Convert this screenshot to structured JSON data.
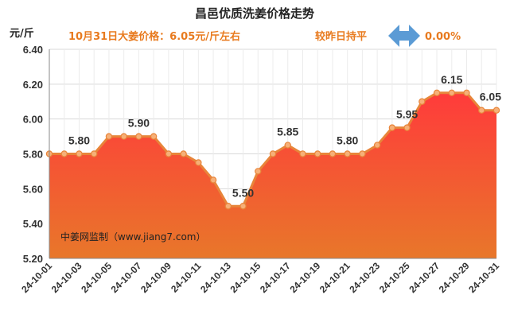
{
  "chart_data": {
    "type": "area",
    "title": "昌邑优质洗姜价格走势",
    "unit_label": "元/斤",
    "price_note": "10月31日大姜价格：6.05元/斤左右",
    "change_text": "较昨日持平",
    "change_value": "0.00%",
    "source": "中姜网监制（www.jiang7.com）",
    "ylim": [
      5.2,
      6.4
    ],
    "yticks": [
      "5.20",
      "5.40",
      "5.60",
      "5.80",
      "6.00",
      "6.20",
      "6.40"
    ],
    "x": [
      "24-10-01",
      "24-10-02",
      "24-10-03",
      "24-10-04",
      "24-10-05",
      "24-10-06",
      "24-10-07",
      "24-10-08",
      "24-10-09",
      "24-10-10",
      "24-10-11",
      "24-10-12",
      "24-10-13",
      "24-10-14",
      "24-10-15",
      "24-10-16",
      "24-10-17",
      "24-10-18",
      "24-10-19",
      "24-10-20",
      "24-10-21",
      "24-10-22",
      "24-10-23",
      "24-10-24",
      "24-10-25",
      "24-10-26",
      "24-10-27",
      "24-10-28",
      "24-10-29",
      "24-10-30",
      "24-10-31"
    ],
    "xtick_labels": [
      "24-10-01",
      "24-10-03",
      "24-10-05",
      "24-10-07",
      "24-10-09",
      "24-10-11",
      "24-10-13",
      "24-10-15",
      "24-10-17",
      "24-10-19",
      "24-10-21",
      "24-10-23",
      "24-10-25",
      "24-10-27",
      "24-10-29",
      "24-10-31"
    ],
    "values": [
      5.8,
      5.8,
      5.8,
      5.8,
      5.9,
      5.9,
      5.9,
      5.9,
      5.8,
      5.8,
      5.75,
      5.65,
      5.5,
      5.5,
      5.7,
      5.8,
      5.85,
      5.8,
      5.8,
      5.8,
      5.8,
      5.8,
      5.85,
      5.95,
      5.95,
      6.1,
      6.15,
      6.15,
      6.15,
      6.05,
      6.05
    ],
    "data_labels": [
      {
        "index": 2,
        "text": "5.80"
      },
      {
        "index": 6,
        "text": "5.90"
      },
      {
        "index": 13,
        "text": "5.50"
      },
      {
        "index": 16,
        "text": "5.85"
      },
      {
        "index": 20,
        "text": "5.80"
      },
      {
        "index": 24,
        "text": "5.95"
      },
      {
        "index": 27,
        "text": "6.15"
      },
      {
        "index": 30,
        "text": "6.05"
      }
    ],
    "colors": {
      "fill_top": "#ff3b3b",
      "fill_bottom": "#e8772a",
      "line": "#e8853a",
      "marker_fill": "#f6b078",
      "note_text": "#e87a1e",
      "arrow": "#5b9bd5"
    },
    "grid": true
  }
}
